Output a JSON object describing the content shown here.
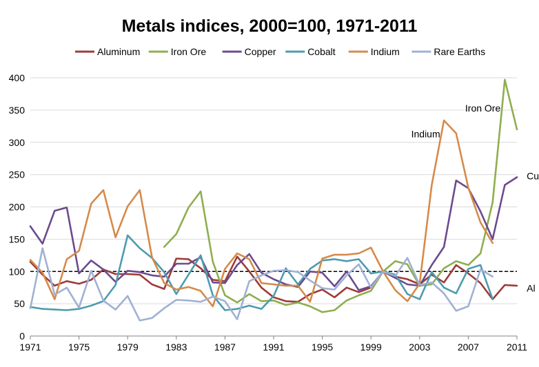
{
  "chart_data": {
    "type": "line",
    "title": "Metals indices, 2000=100, 1971-2011",
    "xlabel": "",
    "ylabel": "",
    "xlim": [
      1971,
      2011
    ],
    "ylim": [
      0,
      400
    ],
    "yticks": [
      0,
      50,
      100,
      150,
      200,
      250,
      300,
      350,
      400
    ],
    "xticks": [
      1971,
      1975,
      1979,
      1983,
      1987,
      1991,
      1995,
      1999,
      2003,
      2007,
      2011
    ],
    "grid": "horizontal",
    "legend_position": "top",
    "reference_line": {
      "y": 100,
      "style": "dashed",
      "color": "#000000"
    },
    "series": [
      {
        "name": "Aluminum",
        "color": "#9E3B38",
        "x": [
          1971,
          1972,
          1973,
          1974,
          1975,
          1976,
          1977,
          1978,
          1979,
          1980,
          1981,
          1982,
          1983,
          1984,
          1985,
          1986,
          1987,
          1988,
          1989,
          1990,
          1991,
          1992,
          1993,
          1994,
          1995,
          1996,
          1997,
          1998,
          1999,
          2000,
          2001,
          2002,
          2003,
          2004,
          2005,
          2006,
          2007,
          2008,
          2009,
          2010,
          2011
        ],
        "values": [
          115,
          95,
          78,
          85,
          81,
          87,
          103,
          96,
          96,
          95,
          80,
          73,
          120,
          119,
          105,
          87,
          85,
          123,
          100,
          75,
          60,
          54,
          53,
          65,
          72,
          60,
          75,
          68,
          75,
          100,
          92,
          88,
          80,
          95,
          83,
          110,
          97,
          82,
          57,
          79,
          78
        ]
      },
      {
        "name": "Iron Ore",
        "color": "#8EAE4E",
        "x": [
          1982,
          1983,
          1984,
          1985,
          1986,
          1987,
          1988,
          1989,
          1990,
          1991,
          1992,
          1993,
          1994,
          1995,
          1996,
          1997,
          1998,
          1999,
          2000,
          2001,
          2002,
          2003,
          2004,
          2005,
          2006,
          2007,
          2008,
          2009,
          2010,
          2011
        ],
        "values": [
          138,
          158,
          199,
          224,
          115,
          63,
          52,
          65,
          54,
          55,
          48,
          52,
          46,
          37,
          40,
          55,
          63,
          70,
          100,
          116,
          111,
          78,
          80,
          105,
          116,
          110,
          128,
          207,
          397,
          320
        ]
      },
      {
        "name": "Copper",
        "color": "#6B4A8E",
        "x": [
          1971,
          1972,
          1973,
          1974,
          1975,
          1976,
          1977,
          1978,
          1979,
          1980,
          1981,
          1982,
          1983,
          1984,
          1985,
          1986,
          1987,
          1988,
          1989,
          1990,
          1991,
          1992,
          1993,
          1994,
          1995,
          1996,
          1997,
          1998,
          1999,
          2000,
          2001,
          2002,
          2003,
          2004,
          2005,
          2006,
          2007,
          2008,
          2009,
          2010,
          2011
        ],
        "values": [
          170,
          143,
          194,
          199,
          97,
          117,
          103,
          84,
          101,
          99,
          94,
          92,
          112,
          112,
          122,
          83,
          82,
          110,
          127,
          98,
          88,
          80,
          76,
          100,
          98,
          77,
          100,
          71,
          77,
          100,
          90,
          80,
          78,
          110,
          138,
          241,
          229,
          193,
          150,
          234,
          246
        ]
      },
      {
        "name": "Cobalt",
        "color": "#4D9BAE",
        "x": [
          1971,
          1972,
          1973,
          1974,
          1975,
          1976,
          1977,
          1978,
          1979,
          1980,
          1981,
          1982,
          1983,
          1984,
          1985,
          1986,
          1987,
          1988,
          1989,
          1990,
          1991,
          1992,
          1993,
          1994,
          1995,
          1996,
          1997,
          1998,
          1999,
          2000,
          2001,
          2002,
          2003,
          2004,
          2005,
          2006,
          2007,
          2008,
          2009
        ],
        "values": [
          45,
          42,
          41,
          40,
          42,
          47,
          54,
          79,
          156,
          136,
          121,
          99,
          65,
          95,
          125,
          63,
          40,
          42,
          47,
          42,
          62,
          105,
          80,
          104,
          117,
          119,
          116,
          119,
          97,
          100,
          95,
          65,
          57,
          99,
          75,
          66,
          104,
          110,
          57
        ]
      },
      {
        "name": "Indium",
        "color": "#D58A4A",
        "x": [
          1971,
          1972,
          1973,
          1974,
          1975,
          1976,
          1977,
          1978,
          1979,
          1980,
          1981,
          1982,
          1983,
          1984,
          1985,
          1986,
          1987,
          1988,
          1989,
          1990,
          1991,
          1992,
          1993,
          1994,
          1995,
          1996,
          1997,
          1998,
          1999,
          2000,
          2001,
          2002,
          2003,
          2004,
          2005,
          2006,
          2007,
          2008,
          2009
        ],
        "values": [
          118,
          98,
          57,
          119,
          132,
          205,
          226,
          153,
          201,
          226,
          122,
          82,
          72,
          76,
          70,
          46,
          104,
          128,
          119,
          82,
          80,
          78,
          78,
          53,
          120,
          126,
          126,
          128,
          137,
          100,
          71,
          54,
          81,
          234,
          334,
          314,
          230,
          176,
          144
        ]
      },
      {
        "name": "Rare Earths",
        "color": "#9FB1D4",
        "x": [
          1971,
          1972,
          1973,
          1974,
          1975,
          1976,
          1977,
          1978,
          1979,
          1980,
          1981,
          1982,
          1983,
          1984,
          1985,
          1986,
          1987,
          1988,
          1989,
          1990,
          1991,
          1992,
          1993,
          1994,
          1995,
          1996,
          1997,
          1998,
          1999,
          2000,
          2001,
          2002,
          2003,
          2004,
          2005,
          2006,
          2007,
          2008,
          2009
        ],
        "values": [
          43,
          136,
          64,
          75,
          44,
          101,
          55,
          41,
          62,
          24,
          28,
          43,
          56,
          55,
          53,
          61,
          54,
          26,
          85,
          94,
          101,
          102,
          99,
          86,
          74,
          72,
          94,
          111,
          75,
          100,
          93,
          121,
          79,
          83,
          66,
          39,
          46,
          103,
          92
        ]
      }
    ],
    "annotations": [
      {
        "text": "Iron Ore",
        "x": 2008.2,
        "y": 353,
        "anchor": "middle"
      },
      {
        "text": "Indium",
        "x": 2003.5,
        "y": 313,
        "anchor": "middle"
      },
      {
        "text": "Cu",
        "x": 2011.8,
        "y": 248,
        "anchor": "start"
      },
      {
        "text": "Al",
        "x": 2011.8,
        "y": 74,
        "anchor": "start"
      }
    ]
  }
}
